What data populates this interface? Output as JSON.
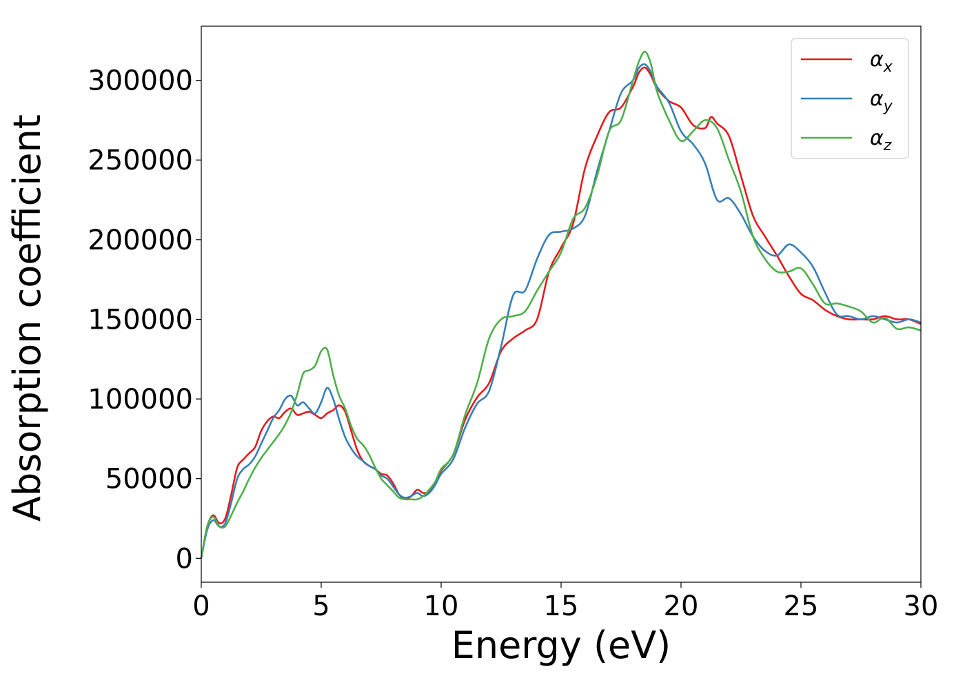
{
  "chart_data": {
    "type": "line",
    "title": "",
    "xlabel": "Energy (eV)",
    "ylabel": "Absorption coefficient",
    "xlim": [
      0,
      30
    ],
    "ylim": [
      -15000,
      334000
    ],
    "xticks": [
      0,
      5,
      10,
      15,
      20,
      25,
      30
    ],
    "yticks": [
      0,
      50000,
      100000,
      150000,
      200000,
      250000,
      300000
    ],
    "grid": false,
    "legend_position": "top-right",
    "series": [
      {
        "name": "x",
        "color": "#e41a1c",
        "x": [
          0,
          0.25,
          0.5,
          0.75,
          1,
          1.25,
          1.5,
          1.75,
          2,
          2.25,
          2.5,
          2.75,
          3,
          3.25,
          3.5,
          3.75,
          4,
          4.25,
          4.5,
          4.75,
          5,
          5.25,
          5.5,
          5.75,
          6,
          6.25,
          6.5,
          6.75,
          7,
          7.25,
          7.5,
          7.75,
          8,
          8.25,
          8.5,
          8.75,
          9,
          9.25,
          9.5,
          9.75,
          10,
          10.5,
          11,
          11.5,
          12,
          12.5,
          13,
          13.5,
          14,
          14.5,
          15,
          15.5,
          16,
          16.5,
          17,
          17.5,
          18,
          18.25,
          18.5,
          18.75,
          19,
          19.5,
          20,
          20.5,
          21,
          21.25,
          21.5,
          22,
          22.5,
          23,
          23.5,
          24,
          24.5,
          25,
          25.5,
          26,
          26.5,
          27,
          27.5,
          28,
          28.5,
          29,
          29.5,
          30
        ],
        "y": [
          0,
          20000,
          27000,
          22000,
          25000,
          40000,
          57000,
          62000,
          66000,
          70000,
          80000,
          86000,
          89000,
          88000,
          92000,
          94000,
          90000,
          91000,
          92000,
          90000,
          88000,
          91000,
          93000,
          96000,
          92000,
          80000,
          68000,
          61000,
          58000,
          56000,
          53000,
          52000,
          47000,
          40000,
          37000,
          39000,
          43000,
          41000,
          42000,
          47000,
          55000,
          65000,
          87000,
          101000,
          110000,
          130000,
          138000,
          143000,
          150000,
          180000,
          195000,
          210000,
          245000,
          265000,
          280000,
          283000,
          296000,
          305000,
          308000,
          303000,
          295000,
          287000,
          283000,
          272000,
          270000,
          277000,
          273000,
          265000,
          240000,
          215000,
          202000,
          190000,
          177000,
          166000,
          162000,
          156000,
          152000,
          150000,
          150000,
          150000,
          152000,
          150000,
          150000,
          147000
        ],
        "legend_label": "αx"
      },
      {
        "name": "y",
        "color": "#377eb8",
        "x": [
          0,
          0.25,
          0.5,
          0.75,
          1,
          1.25,
          1.5,
          1.75,
          2,
          2.25,
          2.5,
          2.75,
          3,
          3.25,
          3.5,
          3.75,
          4,
          4.25,
          4.5,
          4.75,
          5,
          5.25,
          5.5,
          5.75,
          6,
          6.25,
          6.5,
          6.75,
          7,
          7.25,
          7.5,
          7.75,
          8,
          8.25,
          8.5,
          8.75,
          9,
          9.25,
          9.5,
          9.75,
          10,
          10.5,
          11,
          11.5,
          12,
          12.5,
          13,
          13.5,
          14,
          14.5,
          15,
          15.5,
          16,
          16.5,
          17,
          17.5,
          18,
          18.25,
          18.5,
          18.75,
          19,
          19.5,
          20,
          20.5,
          21,
          21.5,
          22,
          22.5,
          23,
          23.5,
          24,
          24.5,
          25,
          25.5,
          26,
          26.5,
          27,
          27.5,
          28,
          28.5,
          29,
          29.5,
          30
        ],
        "y": [
          0,
          18000,
          24000,
          20000,
          22000,
          35000,
          50000,
          56000,
          59000,
          64000,
          72000,
          80000,
          88000,
          93000,
          100000,
          102000,
          96000,
          98000,
          94000,
          91000,
          98000,
          107000,
          100000,
          87000,
          76000,
          69000,
          64000,
          61000,
          58000,
          56000,
          52000,
          50000,
          45000,
          40000,
          38000,
          39000,
          41000,
          39000,
          41000,
          46000,
          53000,
          62000,
          82000,
          97000,
          105000,
          133000,
          165000,
          168000,
          188000,
          203000,
          205000,
          207000,
          215000,
          243000,
          268000,
          292000,
          300000,
          308000,
          310000,
          305000,
          296000,
          286000,
          268000,
          260000,
          248000,
          225000,
          226000,
          216000,
          202000,
          193000,
          190000,
          197000,
          192000,
          183000,
          167000,
          153000,
          152000,
          150000,
          152000,
          150000,
          148000,
          150000,
          148000
        ],
        "legend_label": "αy"
      },
      {
        "name": "z",
        "color": "#4daf4a",
        "x": [
          0,
          0.25,
          0.5,
          0.75,
          1,
          1.25,
          1.5,
          1.75,
          2,
          2.25,
          2.5,
          2.75,
          3,
          3.25,
          3.5,
          3.75,
          4,
          4.25,
          4.5,
          4.75,
          5,
          5.25,
          5.5,
          5.75,
          6,
          6.25,
          6.5,
          6.75,
          7,
          7.25,
          7.5,
          7.75,
          8,
          8.25,
          8.5,
          8.75,
          9,
          9.25,
          9.5,
          9.75,
          10,
          10.5,
          11,
          11.5,
          12,
          12.5,
          13,
          13.5,
          14,
          14.5,
          15,
          15.5,
          16,
          16.5,
          17,
          17.5,
          18,
          18.25,
          18.5,
          18.75,
          19,
          19.5,
          20,
          20.5,
          21,
          21.5,
          22,
          22.5,
          23,
          23.5,
          24,
          24.5,
          25,
          25.5,
          26,
          26.5,
          27,
          27.5,
          28,
          28.5,
          29,
          29.5,
          30
        ],
        "y": [
          0,
          20000,
          26000,
          20000,
          20000,
          27000,
          35000,
          42000,
          50000,
          57000,
          63000,
          68000,
          73000,
          78000,
          84000,
          92000,
          103000,
          116000,
          118000,
          121000,
          130000,
          131000,
          115000,
          102000,
          94000,
          83000,
          75000,
          71000,
          65000,
          57000,
          50000,
          46000,
          42000,
          38000,
          37000,
          37000,
          37000,
          39000,
          43000,
          48000,
          56000,
          65000,
          90000,
          110000,
          138000,
          150000,
          152000,
          155000,
          168000,
          180000,
          192000,
          213000,
          220000,
          240000,
          268000,
          275000,
          300000,
          312000,
          318000,
          310000,
          293000,
          275000,
          262000,
          268000,
          275000,
          270000,
          250000,
          230000,
          202000,
          188000,
          180000,
          180000,
          182000,
          172000,
          160000,
          160000,
          158000,
          155000,
          148000,
          151000,
          144000,
          145000,
          143000
        ],
        "legend_label": "αz"
      }
    ]
  }
}
